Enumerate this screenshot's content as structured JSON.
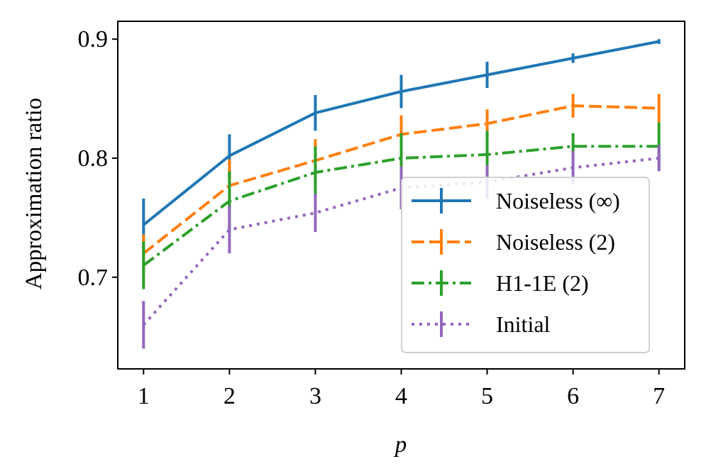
{
  "chart_data": {
    "type": "line",
    "title": "",
    "xlabel": "p",
    "ylabel": "Approximation ratio",
    "x": [
      1,
      2,
      3,
      4,
      5,
      6,
      7
    ],
    "xlim": [
      0.7,
      7.3
    ],
    "ylim": [
      0.623,
      0.915
    ],
    "xticks": [
      1,
      2,
      3,
      4,
      5,
      6,
      7
    ],
    "yticks": [
      0.7,
      0.8,
      0.9
    ],
    "ytick_labels": [
      "0.7",
      "0.8",
      "0.9"
    ],
    "grid": false,
    "legend_position": "bottom-right",
    "series": [
      {
        "name": "Noiseless (∞)",
        "color": "#1f77b4",
        "dash": "solid",
        "values": [
          0.744,
          0.802,
          0.838,
          0.856,
          0.87,
          0.884,
          0.898
        ],
        "errors": [
          0.022,
          0.018,
          0.015,
          0.014,
          0.011,
          0.004,
          0.002
        ]
      },
      {
        "name": "Noiseless (2)",
        "color": "#ff7f0e",
        "dash": "dashed",
        "values": [
          0.72,
          0.777,
          0.798,
          0.82,
          0.829,
          0.844,
          0.842
        ],
        "errors": [
          0.016,
          0.022,
          0.018,
          0.016,
          0.012,
          0.01,
          0.012
        ]
      },
      {
        "name": "H1-1E (2)",
        "color": "#2ca02c",
        "dash": "dashdot",
        "values": [
          0.71,
          0.764,
          0.788,
          0.8,
          0.803,
          0.81,
          0.81
        ],
        "errors": [
          0.02,
          0.025,
          0.022,
          0.021,
          0.02,
          0.011,
          0.02
        ]
      },
      {
        "name": "Initial",
        "color": "#9467bd",
        "dash": "dotted",
        "values": [
          0.66,
          0.74,
          0.754,
          0.775,
          0.78,
          0.792,
          0.8
        ],
        "errors": [
          0.02,
          0.02,
          0.016,
          0.018,
          0.014,
          0.014,
          0.011
        ]
      }
    ]
  }
}
